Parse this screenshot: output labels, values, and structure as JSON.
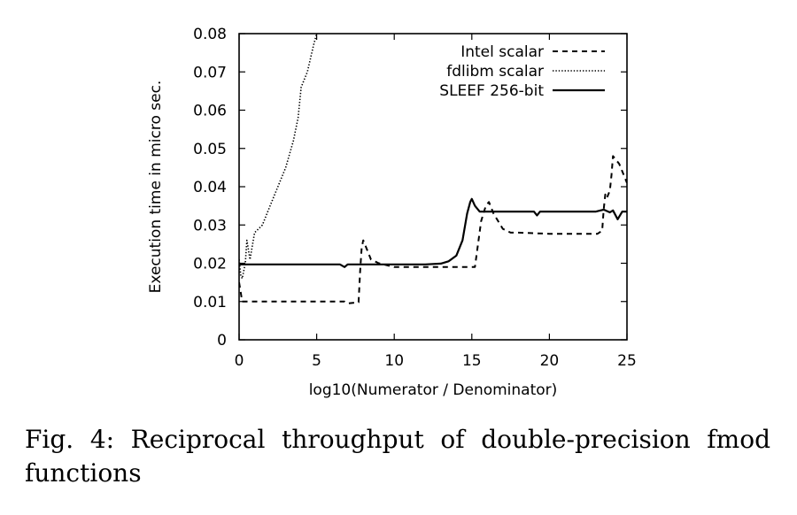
{
  "caption": "Fig. 4: Reciprocal throughput of double-precision fmod functions",
  "chart_data": {
    "type": "line",
    "title": "",
    "xlabel": "log10(Numerator / Denominator)",
    "ylabel": "Execution time in micro sec.",
    "xlim": [
      0,
      25
    ],
    "ylim": [
      0,
      0.08
    ],
    "xticks": [
      0,
      5,
      10,
      15,
      20,
      25
    ],
    "xtick_labels": [
      "0",
      "5",
      "10",
      "15",
      "20",
      "25"
    ],
    "yticks": [
      0,
      0.01,
      0.02,
      0.03,
      0.04,
      0.05,
      0.06,
      0.07,
      0.08
    ],
    "ytick_labels": [
      "0",
      "0.01",
      "0.02",
      "0.03",
      "0.04",
      "0.05",
      "0.06",
      "0.07",
      "0.08"
    ],
    "grid": false,
    "legend_position": "top-right",
    "series": [
      {
        "name": "Intel scalar",
        "style": "dashed",
        "points": [
          [
            0,
            0.015
          ],
          [
            0.2,
            0.01
          ],
          [
            1,
            0.01
          ],
          [
            3,
            0.01
          ],
          [
            5,
            0.01
          ],
          [
            6.8,
            0.01
          ],
          [
            7.0,
            0.0095
          ],
          [
            7.7,
            0.0098
          ],
          [
            7.8,
            0.018
          ],
          [
            7.9,
            0.024
          ],
          [
            8.0,
            0.026
          ],
          [
            8.2,
            0.024
          ],
          [
            8.5,
            0.021
          ],
          [
            9,
            0.02
          ],
          [
            10,
            0.019
          ],
          [
            12,
            0.019
          ],
          [
            14,
            0.019
          ],
          [
            15,
            0.019
          ],
          [
            15.2,
            0.019
          ],
          [
            15.4,
            0.025
          ],
          [
            15.6,
            0.031
          ],
          [
            15.9,
            0.035
          ],
          [
            16.1,
            0.036
          ],
          [
            16.4,
            0.033
          ],
          [
            17,
            0.029
          ],
          [
            17.5,
            0.028
          ],
          [
            18,
            0.028
          ],
          [
            20,
            0.0277
          ],
          [
            22,
            0.0277
          ],
          [
            23.1,
            0.0277
          ],
          [
            23.4,
            0.0285
          ],
          [
            23.5,
            0.034
          ],
          [
            23.6,
            0.038
          ],
          [
            23.7,
            0.037
          ],
          [
            23.9,
            0.039
          ],
          [
            24.0,
            0.043
          ],
          [
            24.1,
            0.048
          ],
          [
            24.5,
            0.046
          ],
          [
            25,
            0.041
          ]
        ]
      },
      {
        "name": "fdlibm scalar",
        "style": "dotted",
        "points": [
          [
            0,
            0.021
          ],
          [
            0.1,
            0.017
          ],
          [
            0.2,
            0.016
          ],
          [
            0.4,
            0.02
          ],
          [
            0.5,
            0.026
          ],
          [
            0.7,
            0.021
          ],
          [
            1.0,
            0.028
          ],
          [
            1.5,
            0.03
          ],
          [
            2.0,
            0.035
          ],
          [
            2.5,
            0.04
          ],
          [
            3.0,
            0.045
          ],
          [
            3.5,
            0.052
          ],
          [
            3.8,
            0.058
          ],
          [
            4.0,
            0.066
          ],
          [
            4.4,
            0.07
          ],
          [
            4.8,
            0.077
          ],
          [
            5.0,
            0.08
          ]
        ]
      },
      {
        "name": "SLEEF 256-bit",
        "style": "solid",
        "points": [
          [
            0,
            0.0197
          ],
          [
            3,
            0.0197
          ],
          [
            6,
            0.0197
          ],
          [
            6.5,
            0.0197
          ],
          [
            6.8,
            0.019
          ],
          [
            7.0,
            0.0197
          ],
          [
            10,
            0.0197
          ],
          [
            12,
            0.0197
          ],
          [
            13,
            0.0199
          ],
          [
            13.5,
            0.0205
          ],
          [
            14,
            0.022
          ],
          [
            14.4,
            0.026
          ],
          [
            14.7,
            0.033
          ],
          [
            14.9,
            0.036
          ],
          [
            15.0,
            0.0368
          ],
          [
            15.2,
            0.035
          ],
          [
            15.5,
            0.0335
          ],
          [
            17,
            0.0335
          ],
          [
            19,
            0.0335
          ],
          [
            19.2,
            0.0325
          ],
          [
            19.4,
            0.0335
          ],
          [
            21,
            0.0335
          ],
          [
            23,
            0.0335
          ],
          [
            23.5,
            0.034
          ],
          [
            23.9,
            0.0333
          ],
          [
            24.1,
            0.0338
          ],
          [
            24.4,
            0.0315
          ],
          [
            24.7,
            0.0335
          ],
          [
            25,
            0.0335
          ]
        ]
      }
    ]
  }
}
